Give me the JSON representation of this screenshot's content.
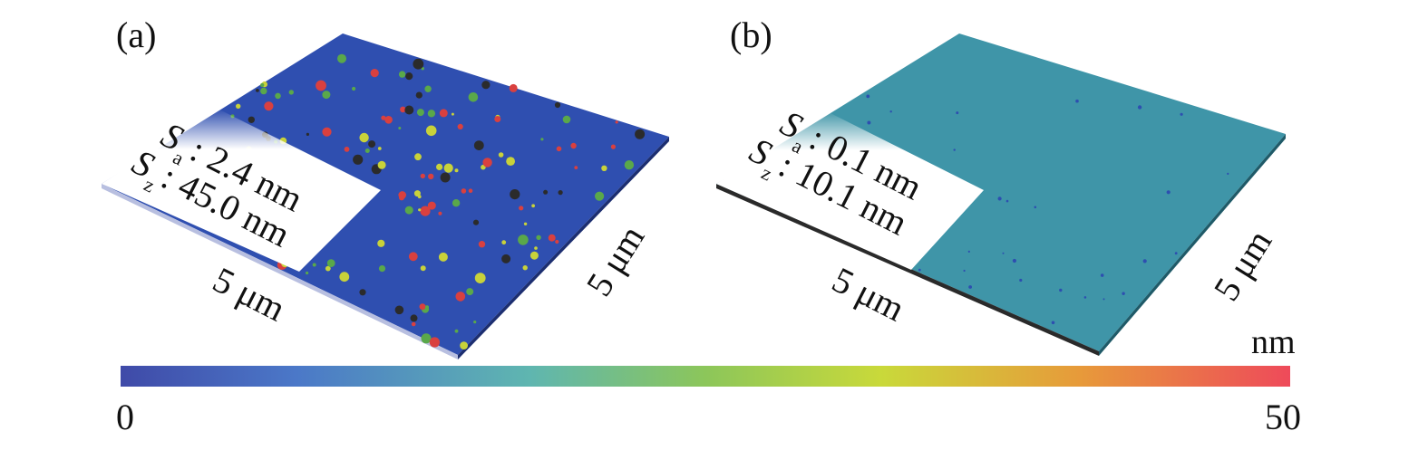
{
  "panels": [
    {
      "label": "(a)",
      "sa_symbol": "S",
      "sa_sub": "a",
      "sa_value": ": 2.4 nm",
      "sz_symbol": "S",
      "sz_sub": "z",
      "sz_value": ": 45.0 nm",
      "dim_front": "5 μm",
      "dim_side": "5 μm",
      "surface_color": "#2f4fb0"
    },
    {
      "label": "(b)",
      "sa_symbol": "S",
      "sa_sub": "a",
      "sa_value": ": 0.1 nm",
      "sz_symbol": "S",
      "sz_sub": "z",
      "sz_value": ": 10.1 nm",
      "dim_front": "5 μm",
      "dim_side": "5 μm",
      "surface_color": "#3f95a8"
    }
  ],
  "colorbar": {
    "unit": "nm",
    "min_label": "0",
    "max_label": "50",
    "colors": [
      "#3f4aa8",
      "#4b78c8",
      "#5fb6b0",
      "#8cc65a",
      "#c9d93a",
      "#e79a3a",
      "#ee4a5a"
    ]
  }
}
